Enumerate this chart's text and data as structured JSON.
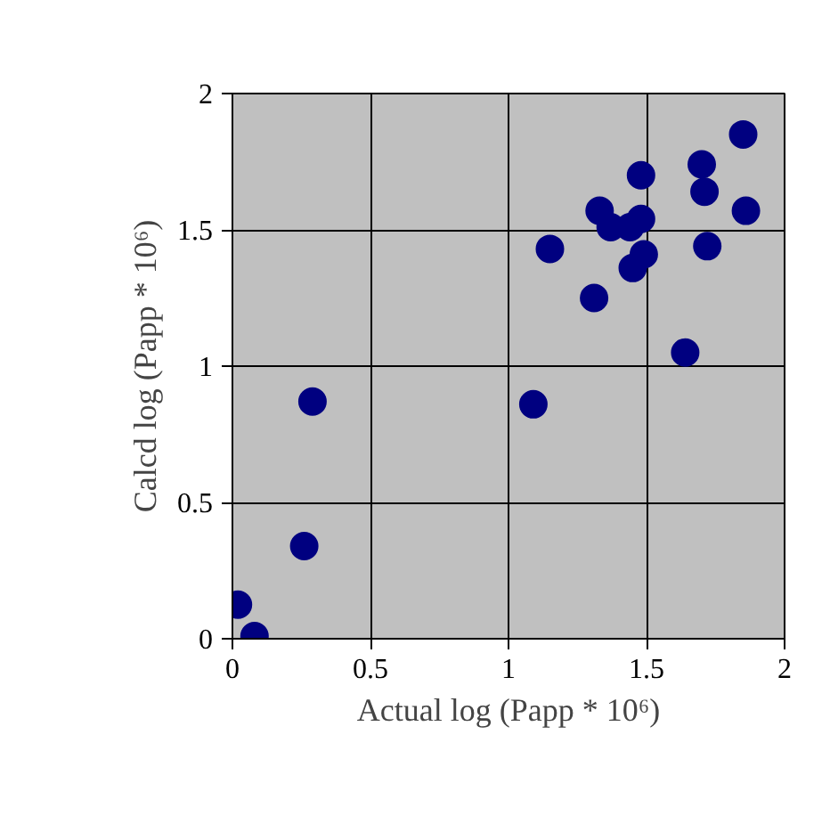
{
  "chart_data": {
    "type": "scatter",
    "xlabel": "Actual log (Papp * 10⁶)",
    "ylabel": "Calcd log (Papp * 10⁶)",
    "xlim": [
      0,
      2
    ],
    "ylim": [
      0,
      2
    ],
    "xticks": [
      0,
      0.5,
      1,
      1.5,
      2
    ],
    "yticks": [
      0,
      0.5,
      1,
      1.5,
      2
    ],
    "grid": true,
    "marker": "circle",
    "series": [
      {
        "color": "#000080",
        "x": [
          0.02,
          0.08,
          0.26,
          0.29,
          1.09,
          1.15,
          1.31,
          1.33,
          1.37,
          1.44,
          1.48,
          1.48,
          1.45,
          1.49,
          1.64,
          1.7,
          1.71,
          1.72,
          1.85,
          1.86
        ],
        "values": [
          0.125,
          0.01,
          0.34,
          0.87,
          0.86,
          1.43,
          1.25,
          1.57,
          1.51,
          1.51,
          1.54,
          1.7,
          1.36,
          1.41,
          1.05,
          1.74,
          1.64,
          1.44,
          1.85,
          1.57
        ]
      }
    ]
  }
}
